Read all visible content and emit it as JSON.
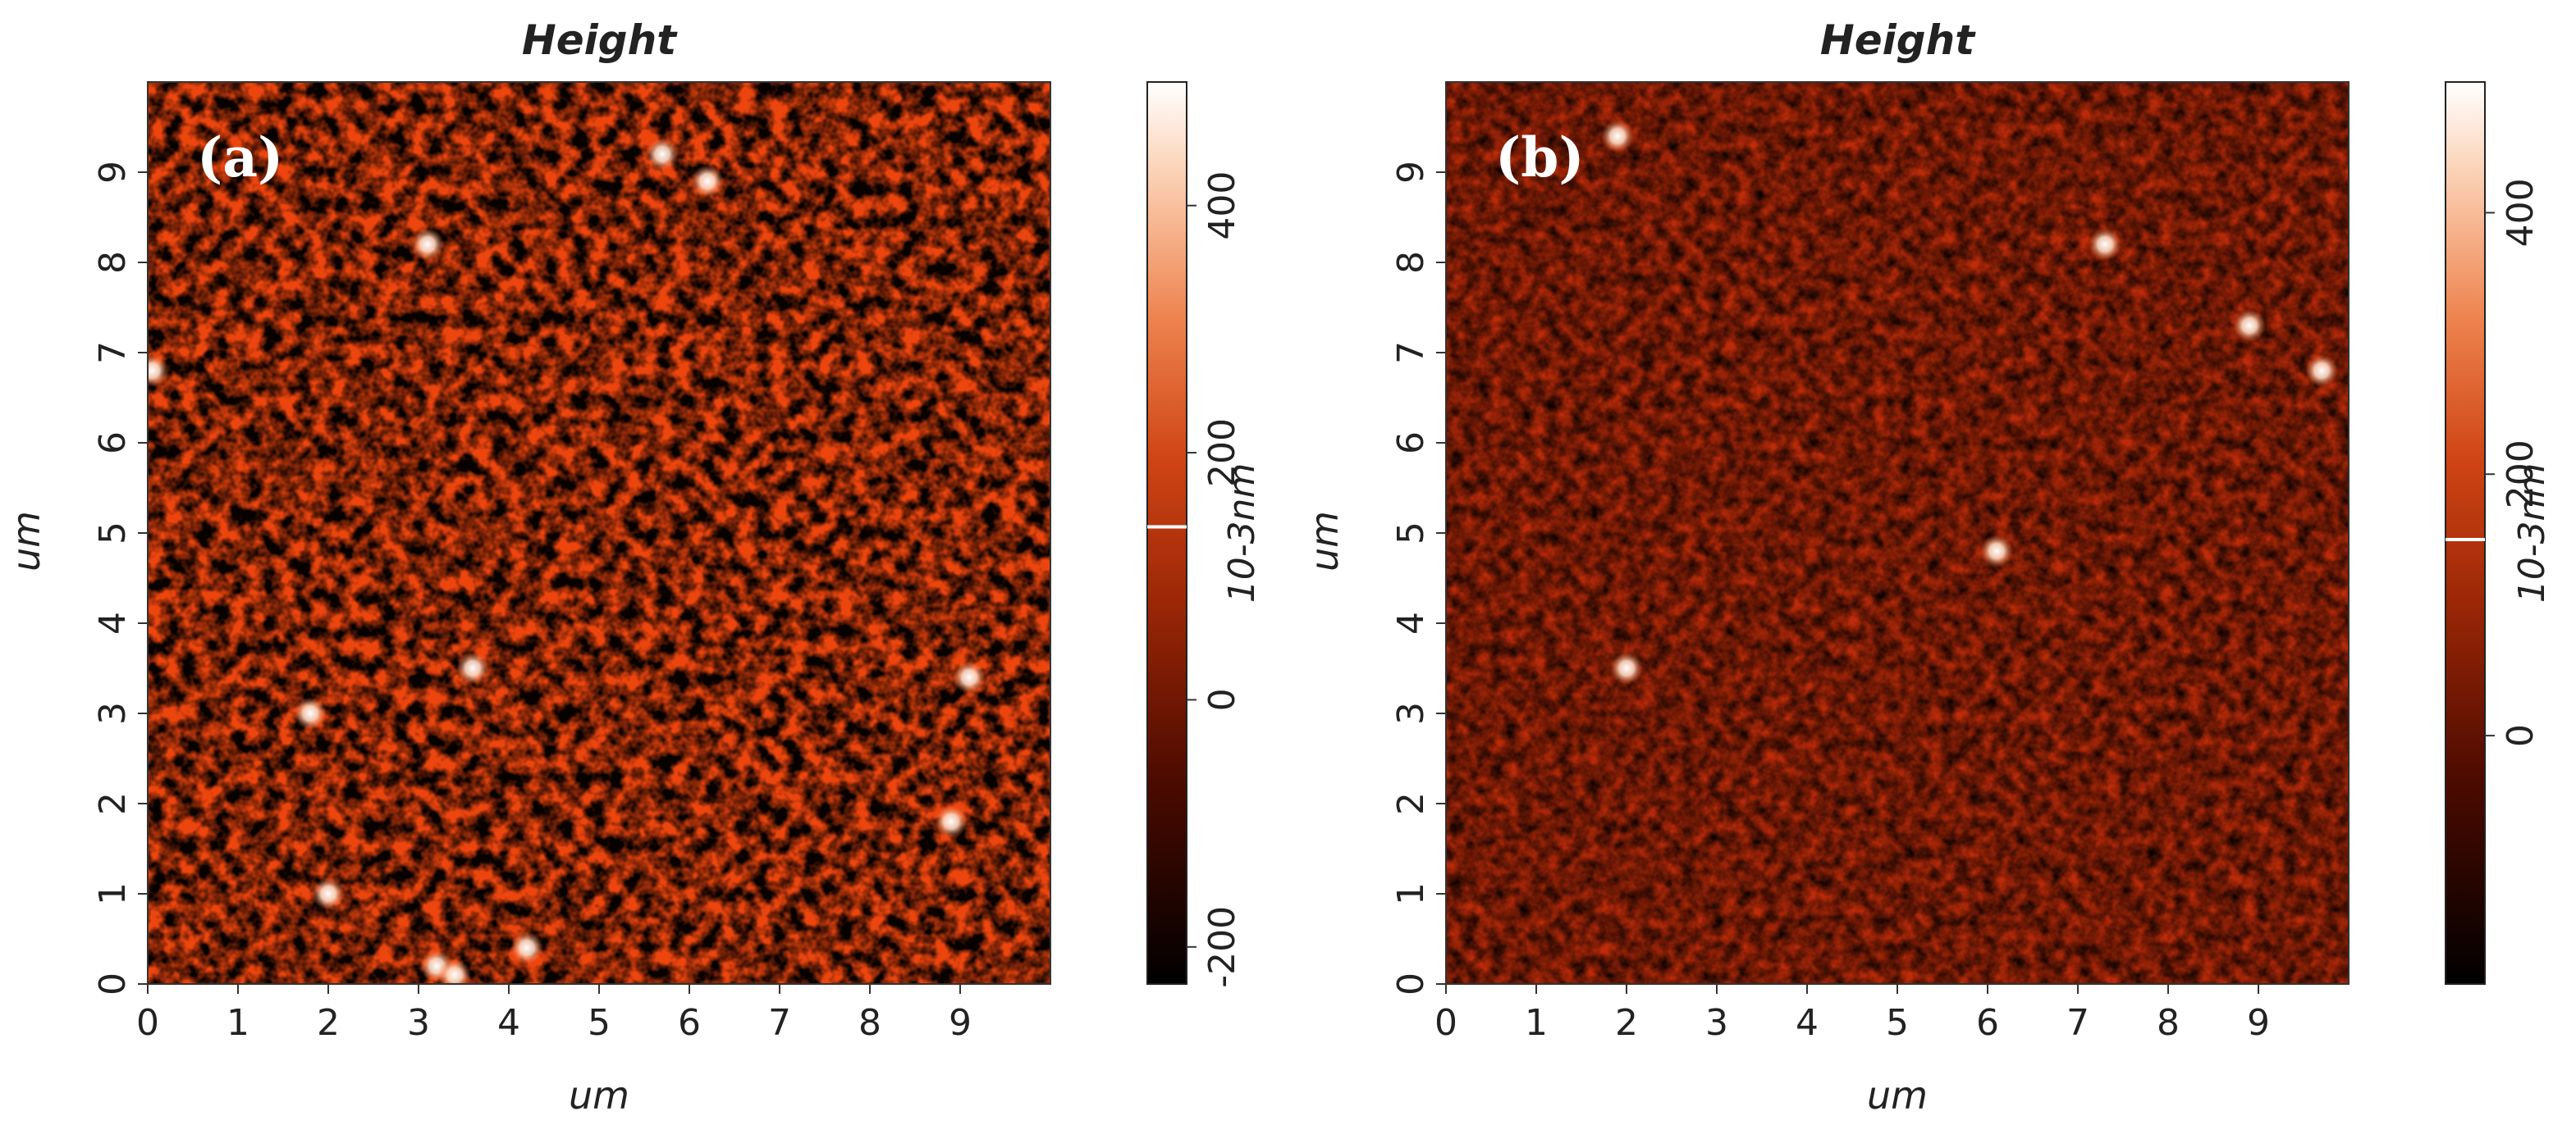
{
  "figure": {
    "panels": [
      {
        "id": "a",
        "label": "(a)",
        "title": "Height",
        "xlabel": "um",
        "ylabel": "um",
        "xticks": [
          "0",
          "1",
          "2",
          "3",
          "4",
          "5",
          "6",
          "7",
          "8",
          "9"
        ],
        "yticks": [
          "0",
          "1",
          "2",
          "3",
          "4",
          "5",
          "6",
          "7",
          "8",
          "9"
        ],
        "colorbar_ticks": [
          "-200",
          "0",
          "200",
          "400"
        ],
        "colorbar_unit": "10-3nm"
      },
      {
        "id": "b",
        "label": "(b)",
        "title": "Height",
        "xlabel": "um",
        "ylabel": "um",
        "xticks": [
          "0",
          "1",
          "2",
          "3",
          "4",
          "5",
          "6",
          "7",
          "8",
          "9"
        ],
        "yticks": [
          "0",
          "1",
          "2",
          "3",
          "4",
          "5",
          "6",
          "7",
          "8",
          "9"
        ],
        "colorbar_ticks": [
          "0",
          "200",
          "400"
        ],
        "colorbar_unit": "10-3nm"
      }
    ]
  },
  "chart_data": [
    {
      "type": "heatmap",
      "title": "Height",
      "panel_label": "(a)",
      "xlabel": "um",
      "ylabel": "um",
      "xlim": [
        0,
        10
      ],
      "ylim": [
        0,
        10
      ],
      "xticks": [
        0,
        1,
        2,
        3,
        4,
        5,
        6,
        7,
        8,
        9
      ],
      "yticks": [
        0,
        1,
        2,
        3,
        4,
        5,
        6,
        7,
        8,
        9
      ],
      "colorbar": {
        "label": "10-3nm",
        "range": [
          -230,
          500
        ],
        "ticks": [
          -200,
          0,
          200,
          400
        ],
        "marker_value": 140,
        "colormap": [
          "#000000",
          "#5a0f00",
          "#a82c08",
          "#e2622a",
          "#f6b08a",
          "#ffffff"
        ]
      },
      "features": {
        "mean_height": 140,
        "bright_spots_um": [
          [
            0.05,
            6.8
          ],
          [
            3.1,
            8.2
          ],
          [
            5.7,
            9.2
          ],
          [
            6.2,
            8.9
          ],
          [
            1.8,
            3.0
          ],
          [
            2.0,
            1.0
          ],
          [
            3.2,
            0.2
          ],
          [
            3.4,
            0.1
          ],
          [
            4.2,
            0.4
          ],
          [
            8.9,
            1.8
          ],
          [
            9.1,
            3.4
          ],
          [
            3.6,
            3.5
          ]
        ]
      }
    },
    {
      "type": "heatmap",
      "title": "Height",
      "panel_label": "(b)",
      "xlabel": "um",
      "ylabel": "um",
      "xlim": [
        0,
        10
      ],
      "ylim": [
        0,
        10
      ],
      "xticks": [
        0,
        1,
        2,
        3,
        4,
        5,
        6,
        7,
        8,
        9
      ],
      "yticks": [
        0,
        1,
        2,
        3,
        4,
        5,
        6,
        7,
        8,
        9
      ],
      "colorbar": {
        "label": "10-3nm",
        "range": [
          -190,
          500
        ],
        "ticks": [
          0,
          200,
          400
        ],
        "marker_value": 150,
        "colormap": [
          "#000000",
          "#5a0f00",
          "#a82c08",
          "#e2622a",
          "#f6b08a",
          "#ffffff"
        ]
      },
      "features": {
        "mean_height": 150,
        "bright_spots_um": [
          [
            1.9,
            9.4
          ],
          [
            7.3,
            8.2
          ],
          [
            8.9,
            7.3
          ],
          [
            9.7,
            6.8
          ],
          [
            2.0,
            3.5
          ],
          [
            6.1,
            4.8
          ]
        ]
      }
    }
  ]
}
